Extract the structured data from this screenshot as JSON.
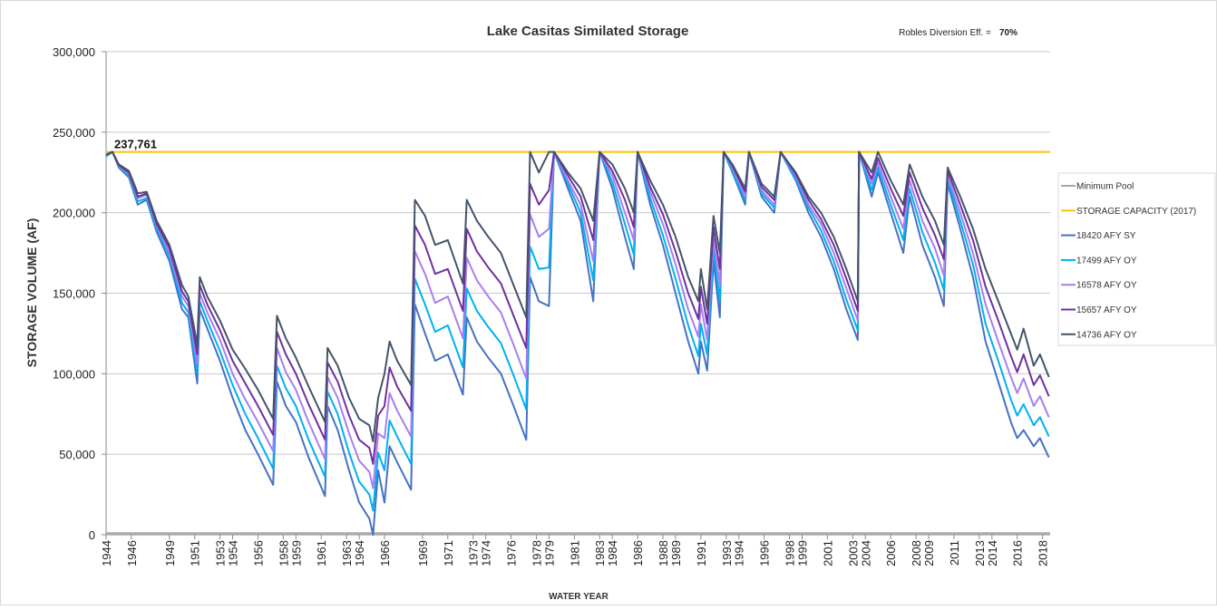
{
  "chart_data": {
    "type": "line",
    "title": "Lake Casitas Similated Storage",
    "note_label": "Robles Diversion Eff. =",
    "note_value": "70%",
    "xlabel": "WATER YEAR",
    "ylabel": "STORAGE  VOLUME (AF)",
    "xlim": [
      1944,
      2018.6
    ],
    "ylim": [
      0,
      300000
    ],
    "xticks": [
      1944,
      1946,
      1949,
      1951,
      1953,
      1954,
      1956,
      1958,
      1959,
      1961,
      1963,
      1964,
      1966,
      1969,
      1971,
      1973,
      1974,
      1976,
      1978,
      1979,
      1981,
      1983,
      1984,
      1986,
      1988,
      1989,
      1991,
      1993,
      1994,
      1996,
      1998,
      1999,
      2001,
      2003,
      2004,
      2006,
      2008,
      2009,
      2011,
      2013,
      2014,
      2016,
      2018
    ],
    "yticks": [
      0,
      {
        "value": 50000,
        "label": "50,000"
      },
      {
        "value": 100000,
        "label": "100,000"
      },
      {
        "value": 150000,
        "label": "150,000"
      },
      {
        "value": 200000,
        "label": "200,000"
      },
      {
        "value": 250000,
        "label": "250,000"
      },
      {
        "value": 300000,
        "label": "300,000"
      }
    ],
    "grid": true,
    "legend": "right",
    "hlines": [
      {
        "name": "Minimum Pool",
        "color": "#a6a6a6",
        "value": 1000
      },
      {
        "name": "STORAGE CAPACITY (2017)",
        "color": "#ffc000",
        "value": 237761,
        "value_label": "237,761"
      }
    ],
    "x": [
      1944.0,
      1944.5,
      1945.0,
      1945.8,
      1946.5,
      1947.2,
      1948.0,
      1949.0,
      1950.0,
      1950.5,
      1951.2,
      1951.4,
      1952.0,
      1953.0,
      1954.0,
      1955.0,
      1956.0,
      1957.2,
      1957.5,
      1958.2,
      1959.0,
      1960.0,
      1961.3,
      1961.5,
      1962.3,
      1963.2,
      1964.0,
      1964.8,
      1965.1,
      1965.5,
      1966.0,
      1966.4,
      1967.0,
      1968.1,
      1968.4,
      1969.2,
      1970.0,
      1971.0,
      1972.2,
      1972.5,
      1973.3,
      1974.2,
      1975.2,
      1976.2,
      1977.2,
      1977.5,
      1978.2,
      1979.0,
      1979.4,
      1980.5,
      1981.5,
      1982.5,
      1983.0,
      1984.0,
      1985.0,
      1985.7,
      1986.0,
      1987.0,
      1988.0,
      1989.0,
      1990.0,
      1990.8,
      1991.0,
      1991.5,
      1992.0,
      1992.5,
      1992.8,
      1993.5,
      1994.5,
      1994.8,
      1995.8,
      1996.8,
      1997.3,
      1998.5,
      1999.5,
      2000.5,
      2001.5,
      2002.5,
      2003.4,
      2003.5,
      2004.5,
      2005.0,
      2006.0,
      2007.0,
      2007.5,
      2008.5,
      2009.5,
      2010.2,
      2010.5,
      2011.5,
      2012.5,
      2013.5,
      2014.5,
      2015.5,
      2016.0,
      2016.5,
      2017.3,
      2017.8,
      2018.5
    ],
    "series": [
      {
        "name": "18420 AFY SY",
        "color": "#4472c4",
        "values": [
          235000,
          237761,
          228000,
          222000,
          205000,
          208000,
          188000,
          170000,
          140000,
          135000,
          94000,
          140000,
          128000,
          108000,
          85000,
          65000,
          50000,
          31000,
          95000,
          80000,
          70000,
          48000,
          24000,
          80000,
          65000,
          40000,
          20000,
          10000,
          0,
          40000,
          20000,
          55000,
          45000,
          28000,
          143000,
          125000,
          108000,
          112000,
          87000,
          135000,
          120000,
          110000,
          100000,
          80000,
          59000,
          160000,
          145000,
          142000,
          237761,
          215000,
          195000,
          145000,
          237761,
          215000,
          185000,
          165000,
          237761,
          205000,
          180000,
          150000,
          120000,
          100000,
          120000,
          102000,
          170000,
          135000,
          237761,
          225000,
          205000,
          237761,
          210000,
          200000,
          237761,
          220000,
          200000,
          185000,
          165000,
          140000,
          121000,
          237761,
          210000,
          225000,
          200000,
          175000,
          210000,
          180000,
          160000,
          142000,
          218000,
          190000,
          160000,
          120000,
          95000,
          70000,
          60000,
          65000,
          55000,
          60000,
          48000
        ]
      },
      {
        "name": "17499 AFY OY",
        "color": "#00b0f0",
        "values": [
          235000,
          237761,
          228500,
          223000,
          207000,
          209000,
          190000,
          173000,
          144000,
          138000,
          100000,
          145000,
          133000,
          114000,
          93000,
          75000,
          60000,
          41000,
          105000,
          91000,
          80000,
          59000,
          36000,
          89000,
          75000,
          51000,
          33000,
          25000,
          15000,
          51000,
          40000,
          71000,
          61000,
          44000,
          159000,
          143000,
          126000,
          130000,
          104000,
          153000,
          139000,
          129000,
          119000,
          99000,
          78000,
          179000,
          165000,
          166000,
          237761,
          218000,
          200000,
          158000,
          237761,
          219000,
          193000,
          174000,
          237761,
          209000,
          186000,
          159000,
          130000,
          111000,
          131000,
          112000,
          177000,
          145000,
          237761,
          226000,
          208000,
          237761,
          212000,
          203000,
          237761,
          221000,
          203000,
          189000,
          170000,
          146000,
          127000,
          237761,
          214000,
          228000,
          205000,
          183000,
          215000,
          188000,
          169000,
          152000,
          221000,
          195000,
          168000,
          131000,
          108000,
          84000,
          74000,
          81000,
          68000,
          73000,
          61000
        ]
      },
      {
        "name": "16578 AFY OY",
        "color": "#a97ef0",
        "values": [
          236000,
          237761,
          229000,
          224000,
          209000,
          211000,
          192000,
          175000,
          148000,
          142000,
          106000,
          150000,
          138000,
          121000,
          100000,
          84000,
          70000,
          52000,
          116000,
          101000,
          90000,
          70000,
          47000,
          98000,
          85000,
          63000,
          46000,
          39000,
          29000,
          63000,
          60000,
          88000,
          77000,
          61000,
          176000,
          162000,
          144000,
          148000,
          122000,
          172000,
          158000,
          148000,
          138000,
          118000,
          97000,
          199000,
          185000,
          190000,
          237761,
          220000,
          205000,
          170000,
          237761,
          223000,
          200000,
          183000,
          237761,
          213000,
          193000,
          168000,
          140000,
          123000,
          143000,
          121000,
          184000,
          155000,
          237761,
          228000,
          210000,
          237761,
          214000,
          205000,
          237761,
          223000,
          205000,
          193000,
          175000,
          153000,
          133000,
          237761,
          218000,
          231000,
          210000,
          190000,
          220000,
          195000,
          178000,
          161000,
          223000,
          200000,
          175000,
          143000,
          120000,
          98000,
          88000,
          97000,
          80000,
          86000,
          73000
        ]
      },
      {
        "name": "15657 AFY OY",
        "color": "#7030a0",
        "values": [
          236000,
          237761,
          229500,
          225000,
          210000,
          212000,
          193000,
          178000,
          151000,
          145000,
          112000,
          155000,
          143000,
          127000,
          108000,
          94000,
          80000,
          62000,
          126000,
          112000,
          100000,
          81000,
          59000,
          107000,
          95000,
          74000,
          59000,
          54000,
          44000,
          74000,
          80000,
          104000,
          92000,
          77000,
          192000,
          180000,
          162000,
          165000,
          139000,
          190000,
          176000,
          166000,
          156000,
          136000,
          116000,
          218000,
          205000,
          214000,
          237761,
          223000,
          210000,
          183000,
          237761,
          226000,
          208000,
          191000,
          237761,
          216000,
          199000,
          176000,
          150000,
          134000,
          154000,
          131000,
          191000,
          165000,
          237761,
          229000,
          213000,
          237761,
          216000,
          208000,
          237761,
          224000,
          208000,
          196000,
          180000,
          159000,
          139000,
          237761,
          221000,
          234000,
          215000,
          198000,
          225000,
          203000,
          186000,
          171000,
          226000,
          205000,
          183000,
          154000,
          133000,
          111000,
          101000,
          112000,
          93000,
          99000,
          86000
        ]
      },
      {
        "name": "14736 AFY OY",
        "color": "#44546a",
        "values": [
          236000,
          237761,
          230000,
          226000,
          212000,
          213000,
          195000,
          180000,
          155000,
          148000,
          118000,
          160000,
          148000,
          133000,
          115000,
          103000,
          90000,
          72000,
          136000,
          122000,
          110000,
          92000,
          70000,
          116000,
          105000,
          85000,
          72000,
          68000,
          58000,
          85000,
          100000,
          120000,
          108000,
          93000,
          208000,
          198000,
          180000,
          183000,
          156000,
          208000,
          195000,
          185000,
          175000,
          155000,
          135000,
          237761,
          225000,
          237761,
          237761,
          225000,
          215000,
          195000,
          237761,
          230000,
          215000,
          200000,
          237761,
          220000,
          205000,
          185000,
          160000,
          145000,
          165000,
          140000,
          198000,
          175000,
          237761,
          230000,
          215000,
          237761,
          218000,
          210000,
          237761,
          225000,
          210000,
          200000,
          185000,
          165000,
          145000,
          237761,
          225000,
          237761,
          220000,
          205000,
          230000,
          210000,
          195000,
          180000,
          228000,
          210000,
          190000,
          165000,
          145000,
          125000,
          115000,
          128000,
          105000,
          112000,
          98000
        ]
      }
    ]
  }
}
